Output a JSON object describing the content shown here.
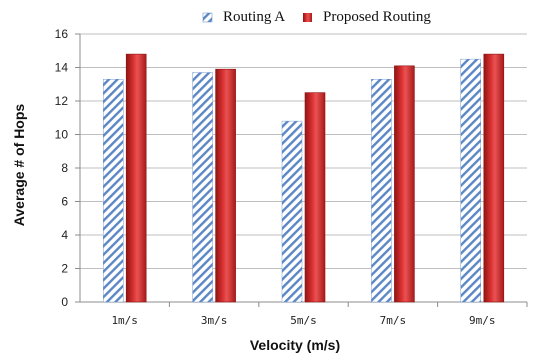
{
  "colors": {
    "routing_a_stripe": "#5b87c5",
    "proposed_fill": "#d42d2d",
    "grid": "#bfbfbf",
    "axis": "#8c8c8c"
  },
  "chart_data": {
    "type": "bar",
    "title": "",
    "xlabel": "Velocity (m/s)",
    "ylabel": "Average # of Hops",
    "categories": [
      "1m/s",
      "3m/s",
      "5m/s",
      "7m/s",
      "9m/s"
    ],
    "ylim": [
      0,
      16
    ],
    "yticks": [
      0,
      2,
      4,
      6,
      8,
      10,
      12,
      14,
      16
    ],
    "grid": true,
    "legend_position": "top",
    "series": [
      {
        "name": "Routing A",
        "values": [
          13.3,
          13.7,
          10.8,
          13.3,
          14.5
        ],
        "pattern": "diagonal-stripes"
      },
      {
        "name": "Proposed Routing",
        "values": [
          14.8,
          13.9,
          12.5,
          14.1,
          14.8
        ],
        "pattern": "solid"
      }
    ]
  }
}
